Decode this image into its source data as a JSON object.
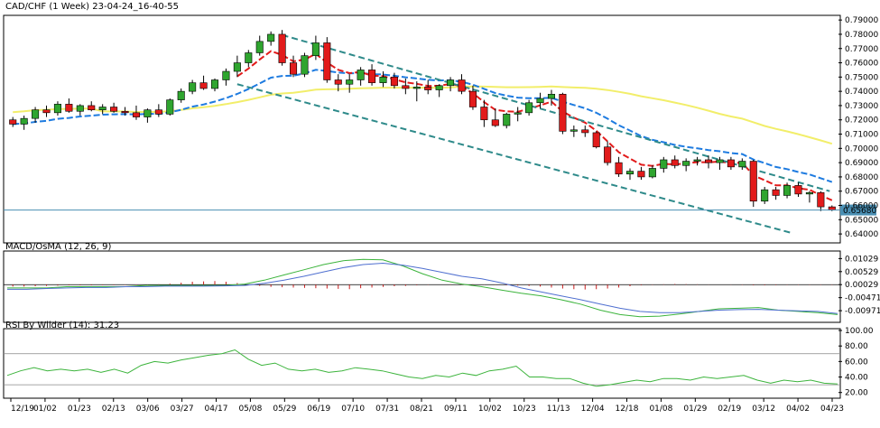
{
  "header": {
    "title": "CAD/CHF (1 Week) 23-04-24_16-40-55"
  },
  "colors": {
    "up": "#2fa52f",
    "down": "#e21b1b",
    "ema_red": "#e21b1b",
    "ema_blue": "#1e7be0",
    "sma_yellow": "#f2ee6a",
    "channel": "#2e8a8a",
    "price_line": "#4a8fb3",
    "macd_line": "#3cb43c",
    "signal_line": "#4f6fd0",
    "osma_bar": "#c81e1e",
    "rsi_line": "#3cb43c",
    "current_label_bg": "#4a8fb3"
  },
  "chart_data": [
    {
      "type": "candlestick",
      "panel": "main",
      "title": "CAD/CHF (1 Week) 23-04-24_16-40-55",
      "ylim": [
        0.635,
        0.792
      ],
      "yticks": [
        "0.79000",
        "0.78000",
        "0.77000",
        "0.76000",
        "0.75000",
        "0.74000",
        "0.73000",
        "0.72000",
        "0.71000",
        "0.70000",
        "0.69000",
        "0.68000",
        "0.67000",
        "0.66000",
        "0.65000",
        "0.64000"
      ],
      "current_price": "0.65680",
      "x_tick_labels": [
        "12/19",
        "01/02",
        "01/23",
        "02/13",
        "03/06",
        "03/27",
        "04/17",
        "05/08",
        "05/29",
        "06/19",
        "07/10",
        "07/31",
        "08/21",
        "09/11",
        "10/02",
        "10/23",
        "11/13",
        "12/04",
        "12/18",
        "01/08",
        "01/29",
        "02/19",
        "03/12",
        "04/02",
        "04/23"
      ],
      "candles": [
        [
          0.72,
          0.722,
          0.715,
          0.717
        ],
        [
          0.717,
          0.723,
          0.713,
          0.721
        ],
        [
          0.721,
          0.729,
          0.718,
          0.727
        ],
        [
          0.727,
          0.73,
          0.722,
          0.725
        ],
        [
          0.725,
          0.733,
          0.723,
          0.731
        ],
        [
          0.731,
          0.735,
          0.725,
          0.726
        ],
        [
          0.726,
          0.731,
          0.723,
          0.73
        ],
        [
          0.73,
          0.733,
          0.726,
          0.727
        ],
        [
          0.727,
          0.731,
          0.724,
          0.729
        ],
        [
          0.729,
          0.732,
          0.725,
          0.726
        ],
        [
          0.726,
          0.729,
          0.723,
          0.725
        ],
        [
          0.725,
          0.73,
          0.72,
          0.722
        ],
        [
          0.722,
          0.728,
          0.718,
          0.727
        ],
        [
          0.727,
          0.731,
          0.722,
          0.724
        ],
        [
          0.724,
          0.735,
          0.723,
          0.734
        ],
        [
          0.734,
          0.742,
          0.732,
          0.74
        ],
        [
          0.74,
          0.748,
          0.738,
          0.746
        ],
        [
          0.746,
          0.751,
          0.741,
          0.742
        ],
        [
          0.742,
          0.749,
          0.74,
          0.748
        ],
        [
          0.748,
          0.756,
          0.744,
          0.754
        ],
        [
          0.754,
          0.765,
          0.75,
          0.76
        ],
        [
          0.76,
          0.769,
          0.757,
          0.767
        ],
        [
          0.767,
          0.779,
          0.765,
          0.775
        ],
        [
          0.775,
          0.782,
          0.772,
          0.78
        ],
        [
          0.78,
          0.783,
          0.758,
          0.76
        ],
        [
          0.76,
          0.765,
          0.75,
          0.752
        ],
        [
          0.752,
          0.767,
          0.75,
          0.765
        ],
        [
          0.765,
          0.779,
          0.762,
          0.774
        ],
        [
          0.774,
          0.778,
          0.746,
          0.748
        ],
        [
          0.748,
          0.752,
          0.74,
          0.745
        ],
        [
          0.745,
          0.752,
          0.739,
          0.748
        ],
        [
          0.748,
          0.757,
          0.744,
          0.755
        ],
        [
          0.755,
          0.759,
          0.744,
          0.746
        ],
        [
          0.746,
          0.754,
          0.743,
          0.75
        ],
        [
          0.75,
          0.753,
          0.742,
          0.744
        ],
        [
          0.744,
          0.749,
          0.738,
          0.742
        ],
        [
          0.742,
          0.747,
          0.733,
          0.743
        ],
        [
          0.743,
          0.748,
          0.738,
          0.741
        ],
        [
          0.741,
          0.745,
          0.736,
          0.744
        ],
        [
          0.744,
          0.75,
          0.74,
          0.748
        ],
        [
          0.748,
          0.752,
          0.738,
          0.74
        ],
        [
          0.74,
          0.744,
          0.727,
          0.729
        ],
        [
          0.729,
          0.734,
          0.715,
          0.72
        ],
        [
          0.72,
          0.728,
          0.715,
          0.716
        ],
        [
          0.716,
          0.725,
          0.714,
          0.724
        ],
        [
          0.724,
          0.729,
          0.719,
          0.725
        ],
        [
          0.725,
          0.734,
          0.723,
          0.732
        ],
        [
          0.732,
          0.739,
          0.728,
          0.735
        ],
        [
          0.735,
          0.741,
          0.73,
          0.738
        ],
        [
          0.738,
          0.739,
          0.71,
          0.712
        ],
        [
          0.712,
          0.716,
          0.708,
          0.713
        ],
        [
          0.713,
          0.716,
          0.708,
          0.711
        ],
        [
          0.711,
          0.712,
          0.7,
          0.701
        ],
        [
          0.701,
          0.705,
          0.688,
          0.69
        ],
        [
          0.69,
          0.694,
          0.68,
          0.682
        ],
        [
          0.682,
          0.686,
          0.678,
          0.684
        ],
        [
          0.684,
          0.687,
          0.678,
          0.68
        ],
        [
          0.68,
          0.688,
          0.679,
          0.686
        ],
        [
          0.686,
          0.694,
          0.683,
          0.692
        ],
        [
          0.692,
          0.695,
          0.686,
          0.688
        ],
        [
          0.688,
          0.693,
          0.684,
          0.691
        ],
        [
          0.691,
          0.694,
          0.688,
          0.692
        ],
        [
          0.692,
          0.695,
          0.686,
          0.69
        ],
        [
          0.69,
          0.694,
          0.685,
          0.692
        ],
        [
          0.692,
          0.694,
          0.685,
          0.687
        ],
        [
          0.687,
          0.693,
          0.685,
          0.691
        ],
        [
          0.691,
          0.692,
          0.659,
          0.663
        ],
        [
          0.663,
          0.673,
          0.661,
          0.671
        ],
        [
          0.671,
          0.673,
          0.664,
          0.667
        ],
        [
          0.667,
          0.676,
          0.665,
          0.674
        ],
        [
          0.674,
          0.676,
          0.666,
          0.668
        ],
        [
          0.668,
          0.67,
          0.662,
          0.669
        ],
        [
          0.669,
          0.67,
          0.656,
          0.659
        ],
        [
          0.659,
          0.66,
          0.656,
          0.6568
        ]
      ]
    },
    {
      "type": "line",
      "panel": "macd",
      "title": "MACD/OsMA (12, 26, 9)",
      "ylim": [
        -0.0135,
        0.0125
      ],
      "yticks": [
        "0.01029",
        "0.00529",
        "0.00029",
        "-0.00471",
        "-0.00971"
      ],
      "series": [
        {
          "values": [
            -0.001,
            -0.001,
            -0.001,
            -0.0005,
            -0.0005,
            -0.0005,
            -0.0005,
            0.0,
            0.0,
            0.0,
            0.0,
            0.0,
            0.0005,
            0.002,
            0.004,
            0.006,
            0.008,
            0.0095,
            0.01,
            0.0098,
            0.0075,
            0.0045,
            0.002,
            0.0005,
            -0.0005,
            -0.0018,
            -0.003,
            -0.004,
            -0.0055,
            -0.0072,
            -0.0095,
            -0.0112,
            -0.012,
            -0.0118,
            -0.011,
            -0.01,
            -0.009,
            -0.0088,
            -0.0085,
            -0.0095,
            -0.01,
            -0.0105,
            -0.0112
          ]
        },
        {
          "values": [
            -0.0015,
            -0.0015,
            -0.0012,
            -0.001,
            -0.0008,
            -0.0008,
            -0.0005,
            -0.0005,
            -0.0003,
            -0.0003,
            -0.0003,
            -0.0002,
            0.0,
            0.0008,
            0.002,
            0.0035,
            0.0052,
            0.0068,
            0.008,
            0.0085,
            0.0078,
            0.0065,
            0.005,
            0.0035,
            0.0025,
            0.001,
            -0.001,
            -0.0025,
            -0.004,
            -0.0055,
            -0.0072,
            -0.0088,
            -0.01,
            -0.0105,
            -0.0105,
            -0.01,
            -0.0095,
            -0.0093,
            -0.0092,
            -0.0095,
            -0.0098,
            -0.01,
            -0.0108
          ]
        }
      ],
      "osma": [
        -0.0012,
        -0.0012,
        -0.001,
        -0.0008,
        -0.0006,
        -0.0004,
        -0.0004,
        -0.0004,
        -0.0003,
        -0.0003,
        -0.0002,
        -0.0002,
        -0.0001,
        0.0002,
        0.0006,
        0.0012,
        0.0018,
        0.002,
        0.0022,
        0.0018,
        0.001,
        0.0,
        -0.0008,
        -0.0014,
        -0.0016,
        -0.0018,
        -0.002,
        -0.0022,
        -0.0024,
        -0.0026,
        -0.0028,
        -0.0022,
        -0.0018,
        -0.0014,
        -0.001,
        -0.0008,
        -0.0004,
        -0.0002,
        0.0,
        0.0002,
        0.0003,
        0.0002,
        0.0001,
        -0.0002,
        -0.0004,
        -0.0006,
        -0.0008,
        -0.0012,
        -0.0018,
        -0.0024,
        -0.0028,
        -0.003,
        -0.0028,
        -0.0024,
        -0.0018,
        -0.001,
        -0.0004,
        -0.0002,
        0.0002,
        0.0004,
        0.0003,
        0.0002,
        0.0001,
        0.0,
        -0.0001,
        -0.0002,
        -0.0004,
        -0.0004,
        -0.0003,
        -0.0002,
        -0.0002,
        -0.0002,
        -0.0002,
        -0.0002
      ]
    },
    {
      "type": "line",
      "panel": "rsi",
      "title": "RSI By Wilder (14): 31.23",
      "ylim": [
        15,
        100
      ],
      "yticks": [
        "100.00",
        "80.00",
        "60.00",
        "40.00",
        "20.00"
      ],
      "levels": [
        70,
        30
      ],
      "values": [
        42,
        48,
        52,
        48,
        50,
        48,
        50,
        46,
        50,
        45,
        55,
        60,
        58,
        62,
        65,
        68,
        70,
        75,
        63,
        55,
        58,
        50,
        48,
        50,
        46,
        48,
        52,
        50,
        48,
        44,
        40,
        38,
        42,
        40,
        45,
        42,
        48,
        50,
        54,
        40,
        40,
        38,
        38,
        32,
        28,
        30,
        33,
        36,
        34,
        38,
        38,
        36,
        40,
        38,
        40,
        42,
        36,
        32,
        36,
        34,
        36,
        32,
        31
      ]
    }
  ]
}
